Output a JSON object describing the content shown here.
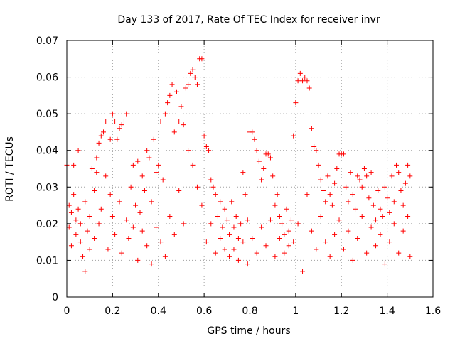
{
  "chart_data": {
    "type": "scatter",
    "title": "Day 133 of 2017, Rate Of TEC Index for receiver invr",
    "xlabel": "GPS time / hours",
    "ylabel": "ROTI / TECUs",
    "xlim": [
      0,
      1.6
    ],
    "ylim": [
      0,
      0.07
    ],
    "grid": true,
    "marker": "+",
    "marker_color": "#ff0000",
    "x_ticks": [
      0,
      0.2,
      0.4,
      0.6,
      0.8,
      1,
      1.2,
      1.4,
      1.6
    ],
    "x_tick_labels": [
      "0",
      "0.2",
      "0.4",
      "0.6",
      "0.8",
      "1",
      "1.2",
      "1.4",
      "1.6"
    ],
    "y_ticks": [
      0,
      0.01,
      0.02,
      0.03,
      0.04,
      0.05,
      0.06,
      0.07
    ],
    "y_tick_labels": [
      "0",
      "0.01",
      "0.02",
      "0.03",
      "0.04",
      "0.05",
      "0.06",
      "0.07"
    ],
    "series": [
      {
        "name": "ROTI",
        "points": [
          [
            0.0,
            0.036
          ],
          [
            0.01,
            0.025
          ],
          [
            0.01,
            0.019
          ],
          [
            0.02,
            0.023
          ],
          [
            0.02,
            0.014
          ],
          [
            0.03,
            0.036
          ],
          [
            0.03,
            0.028
          ],
          [
            0.04,
            0.021
          ],
          [
            0.04,
            0.017
          ],
          [
            0.05,
            0.04
          ],
          [
            0.05,
            0.024
          ],
          [
            0.06,
            0.015
          ],
          [
            0.06,
            0.02
          ],
          [
            0.07,
            0.011
          ],
          [
            0.08,
            0.007
          ],
          [
            0.08,
            0.026
          ],
          [
            0.09,
            0.018
          ],
          [
            0.1,
            0.013
          ],
          [
            0.1,
            0.022
          ],
          [
            0.11,
            0.035
          ],
          [
            0.12,
            0.029
          ],
          [
            0.12,
            0.016
          ],
          [
            0.13,
            0.034
          ],
          [
            0.13,
            0.038
          ],
          [
            0.14,
            0.042
          ],
          [
            0.14,
            0.02
          ],
          [
            0.15,
            0.024
          ],
          [
            0.15,
            0.044
          ],
          [
            0.16,
            0.045
          ],
          [
            0.17,
            0.048
          ],
          [
            0.17,
            0.033
          ],
          [
            0.18,
            0.013
          ],
          [
            0.19,
            0.043
          ],
          [
            0.19,
            0.028
          ],
          [
            0.2,
            0.05
          ],
          [
            0.2,
            0.022
          ],
          [
            0.21,
            0.048
          ],
          [
            0.21,
            0.017
          ],
          [
            0.22,
            0.043
          ],
          [
            0.23,
            0.046
          ],
          [
            0.23,
            0.026
          ],
          [
            0.24,
            0.047
          ],
          [
            0.24,
            0.012
          ],
          [
            0.25,
            0.048
          ],
          [
            0.26,
            0.05
          ],
          [
            0.26,
            0.021
          ],
          [
            0.27,
            0.016
          ],
          [
            0.28,
            0.03
          ],
          [
            0.29,
            0.036
          ],
          [
            0.29,
            0.019
          ],
          [
            0.3,
            0.025
          ],
          [
            0.31,
            0.037
          ],
          [
            0.31,
            0.01
          ],
          [
            0.32,
            0.023
          ],
          [
            0.33,
            0.033
          ],
          [
            0.33,
            0.018
          ],
          [
            0.34,
            0.029
          ],
          [
            0.35,
            0.04
          ],
          [
            0.35,
            0.014
          ],
          [
            0.36,
            0.038
          ],
          [
            0.37,
            0.026
          ],
          [
            0.37,
            0.009
          ],
          [
            0.38,
            0.043
          ],
          [
            0.39,
            0.034
          ],
          [
            0.39,
            0.019
          ],
          [
            0.4,
            0.036
          ],
          [
            0.41,
            0.048
          ],
          [
            0.41,
            0.015
          ],
          [
            0.42,
            0.032
          ],
          [
            0.43,
            0.05
          ],
          [
            0.43,
            0.011
          ],
          [
            0.44,
            0.053
          ],
          [
            0.45,
            0.055
          ],
          [
            0.45,
            0.022
          ],
          [
            0.46,
            0.058
          ],
          [
            0.47,
            0.045
          ],
          [
            0.47,
            0.017
          ],
          [
            0.48,
            0.056
          ],
          [
            0.49,
            0.048
          ],
          [
            0.49,
            0.029
          ],
          [
            0.5,
            0.052
          ],
          [
            0.51,
            0.047
          ],
          [
            0.51,
            0.02
          ],
          [
            0.52,
            0.057
          ],
          [
            0.53,
            0.058
          ],
          [
            0.53,
            0.04
          ],
          [
            0.54,
            0.061
          ],
          [
            0.55,
            0.062
          ],
          [
            0.55,
            0.036
          ],
          [
            0.56,
            0.06
          ],
          [
            0.57,
            0.058
          ],
          [
            0.57,
            0.03
          ],
          [
            0.58,
            0.065
          ],
          [
            0.59,
            0.065
          ],
          [
            0.59,
            0.025
          ],
          [
            0.6,
            0.044
          ],
          [
            0.61,
            0.041
          ],
          [
            0.61,
            0.015
          ],
          [
            0.62,
            0.04
          ],
          [
            0.63,
            0.032
          ],
          [
            0.63,
            0.02
          ],
          [
            0.64,
            0.03
          ],
          [
            0.65,
            0.028
          ],
          [
            0.65,
            0.012
          ],
          [
            0.66,
            0.022
          ],
          [
            0.67,
            0.026
          ],
          [
            0.67,
            0.016
          ],
          [
            0.68,
            0.019
          ],
          [
            0.69,
            0.024
          ],
          [
            0.69,
            0.013
          ],
          [
            0.7,
            0.021
          ],
          [
            0.71,
            0.017
          ],
          [
            0.71,
            0.011
          ],
          [
            0.72,
            0.026
          ],
          [
            0.73,
            0.019
          ],
          [
            0.73,
            0.013
          ],
          [
            0.74,
            0.022
          ],
          [
            0.75,
            0.016
          ],
          [
            0.75,
            0.01
          ],
          [
            0.76,
            0.02
          ],
          [
            0.77,
            0.015
          ],
          [
            0.77,
            0.034
          ],
          [
            0.78,
            0.028
          ],
          [
            0.79,
            0.021
          ],
          [
            0.79,
            0.009
          ],
          [
            0.8,
            0.045
          ],
          [
            0.81,
            0.045
          ],
          [
            0.81,
            0.016
          ],
          [
            0.82,
            0.043
          ],
          [
            0.83,
            0.04
          ],
          [
            0.83,
            0.012
          ],
          [
            0.84,
            0.037
          ],
          [
            0.85,
            0.032
          ],
          [
            0.85,
            0.019
          ],
          [
            0.86,
            0.035
          ],
          [
            0.87,
            0.039
          ],
          [
            0.87,
            0.014
          ],
          [
            0.88,
            0.039
          ],
          [
            0.89,
            0.038
          ],
          [
            0.89,
            0.021
          ],
          [
            0.9,
            0.033
          ],
          [
            0.91,
            0.025
          ],
          [
            0.91,
            0.011
          ],
          [
            0.92,
            0.028
          ],
          [
            0.93,
            0.022
          ],
          [
            0.93,
            0.016
          ],
          [
            0.94,
            0.02
          ],
          [
            0.95,
            0.017
          ],
          [
            0.95,
            0.012
          ],
          [
            0.96,
            0.024
          ],
          [
            0.97,
            0.018
          ],
          [
            0.97,
            0.014
          ],
          [
            0.98,
            0.021
          ],
          [
            0.99,
            0.044
          ],
          [
            0.99,
            0.015
          ],
          [
            1.0,
            0.053
          ],
          [
            1.01,
            0.059
          ],
          [
            1.01,
            0.02
          ],
          [
            1.02,
            0.061
          ],
          [
            1.03,
            0.059
          ],
          [
            1.03,
            0.007
          ],
          [
            1.04,
            0.06
          ],
          [
            1.05,
            0.059
          ],
          [
            1.05,
            0.028
          ],
          [
            1.06,
            0.057
          ],
          [
            1.07,
            0.046
          ],
          [
            1.07,
            0.018
          ],
          [
            1.08,
            0.041
          ],
          [
            1.09,
            0.04
          ],
          [
            1.09,
            0.013
          ],
          [
            1.1,
            0.036
          ],
          [
            1.11,
            0.032
          ],
          [
            1.11,
            0.022
          ],
          [
            1.12,
            0.029
          ],
          [
            1.13,
            0.026
          ],
          [
            1.13,
            0.015
          ],
          [
            1.14,
            0.033
          ],
          [
            1.15,
            0.028
          ],
          [
            1.15,
            0.011
          ],
          [
            1.16,
            0.025
          ],
          [
            1.17,
            0.031
          ],
          [
            1.17,
            0.017
          ],
          [
            1.18,
            0.035
          ],
          [
            1.19,
            0.039
          ],
          [
            1.19,
            0.021
          ],
          [
            1.2,
            0.039
          ],
          [
            1.21,
            0.039
          ],
          [
            1.21,
            0.013
          ],
          [
            1.22,
            0.03
          ],
          [
            1.23,
            0.026
          ],
          [
            1.23,
            0.018
          ],
          [
            1.24,
            0.034
          ],
          [
            1.25,
            0.028
          ],
          [
            1.25,
            0.01
          ],
          [
            1.26,
            0.024
          ],
          [
            1.27,
            0.033
          ],
          [
            1.27,
            0.016
          ],
          [
            1.28,
            0.032
          ],
          [
            1.29,
            0.03
          ],
          [
            1.29,
            0.022
          ],
          [
            1.3,
            0.035
          ],
          [
            1.31,
            0.033
          ],
          [
            1.31,
            0.012
          ],
          [
            1.32,
            0.027
          ],
          [
            1.33,
            0.034
          ],
          [
            1.33,
            0.019
          ],
          [
            1.34,
            0.025
          ],
          [
            1.35,
            0.021
          ],
          [
            1.35,
            0.014
          ],
          [
            1.36,
            0.029
          ],
          [
            1.37,
            0.024
          ],
          [
            1.37,
            0.017
          ],
          [
            1.38,
            0.022
          ],
          [
            1.39,
            0.03
          ],
          [
            1.39,
            0.009
          ],
          [
            1.4,
            0.027
          ],
          [
            1.41,
            0.023
          ],
          [
            1.41,
            0.015
          ],
          [
            1.42,
            0.033
          ],
          [
            1.43,
            0.026
          ],
          [
            1.43,
            0.02
          ],
          [
            1.44,
            0.036
          ],
          [
            1.45,
            0.034
          ],
          [
            1.45,
            0.012
          ],
          [
            1.46,
            0.029
          ],
          [
            1.47,
            0.025
          ],
          [
            1.47,
            0.018
          ],
          [
            1.48,
            0.031
          ],
          [
            1.49,
            0.036
          ],
          [
            1.49,
            0.022
          ],
          [
            1.5,
            0.033
          ],
          [
            1.5,
            0.011
          ]
        ]
      }
    ]
  }
}
